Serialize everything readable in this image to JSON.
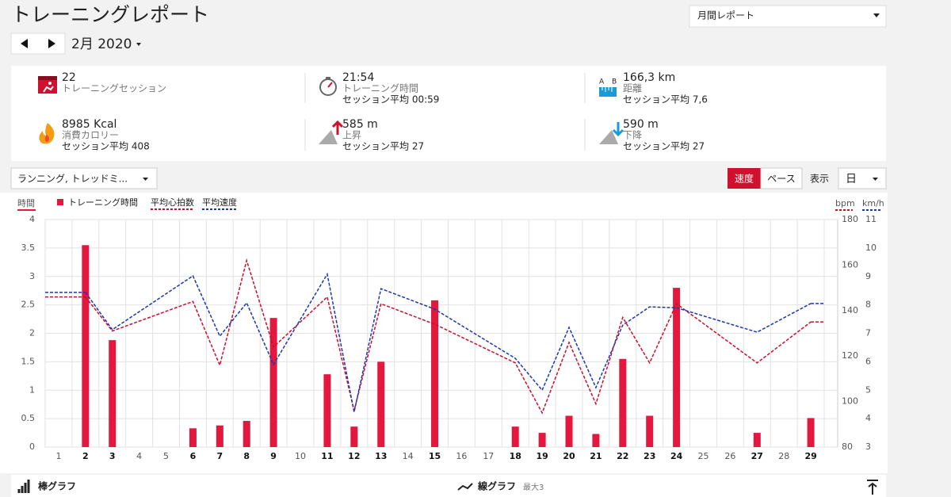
{
  "header": {
    "title": "トレーニングレポート",
    "report_select": "月間レポート",
    "period": "2月 2020"
  },
  "summary": [
    {
      "value": "22",
      "label": "トレーニングセッション"
    },
    {
      "value": "21:54",
      "label": "トレーニング時間",
      "sub": "セッション平均 00:59"
    },
    {
      "value": "166,3 km",
      "label": "距離",
      "sub": "セッション平均 7,6"
    },
    {
      "value": "8985 Kcal",
      "label": "消費カロリー",
      "sub": "セッション平均 408"
    },
    {
      "value": "585 m",
      "label": "上昇",
      "sub": "セッション平均 27"
    },
    {
      "value": "590 m",
      "label": "下降",
      "sub": "セッション平均 27"
    }
  ],
  "controls": {
    "sport": "ランニング, トレッドミ...",
    "speed": "速度",
    "pace": "ペース",
    "view_label": "表示",
    "view": "日"
  },
  "chart_data": {
    "type": "combo",
    "y_label": "時間",
    "y2_label": "bpm",
    "y3_label": "km/h",
    "x": [
      2,
      3,
      6,
      7,
      8,
      9,
      11,
      12,
      13,
      15,
      18,
      19,
      20,
      21,
      22,
      23,
      24,
      27,
      29
    ],
    "xlim": [
      0.5,
      30
    ],
    "xticks": [
      1,
      2,
      3,
      4,
      5,
      6,
      7,
      8,
      9,
      10,
      11,
      12,
      13,
      14,
      15,
      16,
      17,
      18,
      19,
      20,
      21,
      22,
      23,
      24,
      25,
      26,
      27,
      28,
      29
    ],
    "ylim": [
      0,
      4
    ],
    "yticks": [
      0,
      0.5,
      1,
      1.5,
      2,
      2.5,
      3,
      3.5,
      4
    ],
    "y2lim": [
      80,
      180
    ],
    "y2ticks": [
      80,
      100,
      120,
      140,
      160,
      180
    ],
    "y3lim": [
      3,
      11
    ],
    "y3ticks": [
      3,
      4,
      5,
      6,
      7,
      8,
      9,
      10,
      11
    ],
    "grid": true,
    "series": [
      {
        "name": "トレーニング時間",
        "type": "bar",
        "color": "#e4173e",
        "values": [
          3.55,
          1.88,
          0.33,
          0.38,
          0.46,
          2.27,
          1.28,
          0.36,
          1.5,
          2.58,
          0.36,
          0.25,
          0.55,
          0.23,
          1.55,
          0.55,
          2.8,
          0.25,
          0.51
        ]
      },
      {
        "name": "平均心拍数",
        "type": "line",
        "axis": "y2",
        "color": "#c8102e",
        "values": [
          146,
          131,
          144,
          116,
          162,
          124,
          146,
          96,
          143,
          134,
          117,
          95,
          126,
          99,
          137,
          117,
          143,
          117,
          135
        ]
      },
      {
        "name": "平均速度",
        "type": "line",
        "axis": "y3",
        "color": "#1a37b0",
        "values": [
          8.44,
          7.13,
          9.02,
          6.9,
          8.07,
          5.9,
          9.08,
          4.23,
          8.57,
          7.85,
          6.12,
          5.0,
          7.21,
          5.09,
          7.29,
          7.93,
          7.9,
          7.04,
          8.05
        ]
      }
    ]
  },
  "footer": {
    "bar": "棒グラフ",
    "line": "線グラフ",
    "line_note": "最大3"
  }
}
